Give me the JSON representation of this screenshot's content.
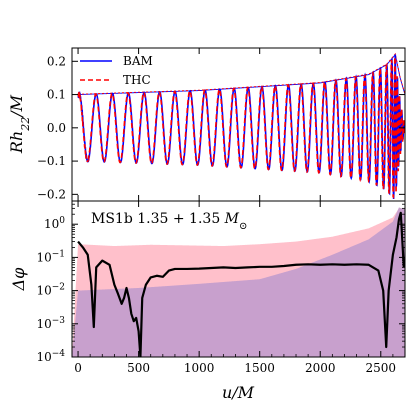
{
  "chart_data": [
    {
      "type": "line",
      "ylabel": "Rh22/M",
      "ylabel_parts": {
        "main": "Rh",
        "sub": "22",
        "tail": "/M"
      },
      "xlim": [
        -50,
        2700
      ],
      "ylim": [
        -0.22,
        0.24
      ],
      "y_ticks": [
        -0.2,
        -0.1,
        0.0,
        0.1,
        0.2
      ],
      "y_tick_labels": [
        "−0.2",
        "−0.1",
        "0.0",
        "0.1",
        "0.2"
      ],
      "legend_position": "top-left",
      "legend": [
        {
          "name": "BAM",
          "color": "#0000ff",
          "dash": "solid"
        },
        {
          "name": "THC",
          "color": "#ff0000",
          "dash": "dashed"
        }
      ],
      "signal": {
        "t_merger": 2620,
        "amplitude_points": [
          [
            0,
            0.1
          ],
          [
            1000,
            0.112
          ],
          [
            2000,
            0.135
          ],
          [
            2400,
            0.16
          ],
          [
            2550,
            0.19
          ],
          [
            2620,
            0.22
          ],
          [
            2660,
            0.15
          ],
          [
            2700,
            0.1
          ]
        ],
        "peak_times": [
          10,
          150,
          284,
          416,
          546,
          674,
          801,
          926,
          1049,
          1170,
          1289,
          1405,
          1519,
          1630,
          1738,
          1843,
          1943,
          2039,
          2130,
          2216,
          2296,
          2370,
          2437,
          2497,
          2550,
          2592,
          2620
        ],
        "noise_window": [
          0,
          120
        ]
      }
    },
    {
      "type": "line",
      "xlabel": "u/M",
      "ylabel": "Δφ",
      "yscale": "log",
      "xlim": [
        -50,
        2700
      ],
      "ylim": [
        0.0001,
        5
      ],
      "x_ticks": [
        0,
        500,
        1000,
        1500,
        2000,
        2500
      ],
      "x_tick_labels": [
        "0",
        "500",
        "1000",
        "1500",
        "2000",
        "2500"
      ],
      "y_ticks": [
        0.0001,
        0.001,
        0.01,
        0.1,
        1
      ],
      "y_tick_labels": [
        {
          "base": "10",
          "exp": "−4"
        },
        {
          "base": "10",
          "exp": "−3"
        },
        {
          "base": "10",
          "exp": "−2"
        },
        {
          "base": "10",
          "exp": "−1"
        },
        {
          "base": "10",
          "exp": "0"
        }
      ],
      "annotation": {
        "main": "MS1b 1.35 + 1.35 ",
        "mass": "M",
        "sun": "⊙"
      },
      "colors": {
        "pink_band": "#ffc0cb",
        "purple_band": "#c8a0cd",
        "line": "#000000"
      },
      "pink_upper": [
        [
          0,
          0.25
        ],
        [
          300,
          0.22
        ],
        [
          600,
          0.24
        ],
        [
          900,
          0.23
        ],
        [
          1200,
          0.22
        ],
        [
          1500,
          0.25
        ],
        [
          1800,
          0.3
        ],
        [
          2100,
          0.42
        ],
        [
          2400,
          0.75
        ],
        [
          2600,
          1.6
        ],
        [
          2650,
          3.0
        ],
        [
          2700,
          2.4
        ]
      ],
      "purple_upper": [
        [
          0,
          0.01
        ],
        [
          500,
          0.012
        ],
        [
          1000,
          0.016
        ],
        [
          1500,
          0.022
        ],
        [
          1800,
          0.045
        ],
        [
          2100,
          0.12
        ],
        [
          2400,
          0.35
        ],
        [
          2600,
          1.2
        ],
        [
          2650,
          3.2
        ],
        [
          2700,
          2.8
        ]
      ],
      "delta_phi": [
        [
          0,
          0.3
        ],
        [
          40,
          0.2
        ],
        [
          80,
          0.12
        ],
        [
          110,
          0.015
        ],
        [
          130,
          0.0008
        ],
        [
          150,
          0.05
        ],
        [
          200,
          0.08
        ],
        [
          260,
          0.06
        ],
        [
          300,
          0.015
        ],
        [
          330,
          0.008
        ],
        [
          360,
          0.004
        ],
        [
          380,
          0.006
        ],
        [
          400,
          0.012
        ],
        [
          420,
          0.006
        ],
        [
          440,
          0.002
        ],
        [
          460,
          0.0012
        ],
        [
          480,
          0.0015
        ],
        [
          500,
          0.0006
        ],
        [
          515,
          0.0001
        ],
        [
          530,
          0.006
        ],
        [
          560,
          0.015
        ],
        [
          600,
          0.025
        ],
        [
          650,
          0.028
        ],
        [
          700,
          0.026
        ],
        [
          750,
          0.04
        ],
        [
          800,
          0.045
        ],
        [
          900,
          0.045
        ],
        [
          1000,
          0.046
        ],
        [
          1100,
          0.048
        ],
        [
          1200,
          0.05
        ],
        [
          1300,
          0.048
        ],
        [
          1400,
          0.05
        ],
        [
          1500,
          0.052
        ],
        [
          1600,
          0.052
        ],
        [
          1700,
          0.055
        ],
        [
          1800,
          0.06
        ],
        [
          1900,
          0.062
        ],
        [
          2000,
          0.06
        ],
        [
          2100,
          0.062
        ],
        [
          2200,
          0.06
        ],
        [
          2300,
          0.062
        ],
        [
          2400,
          0.06
        ],
        [
          2480,
          0.04
        ],
        [
          2520,
          0.01
        ],
        [
          2545,
          0.0002
        ],
        [
          2565,
          0.01
        ],
        [
          2600,
          0.12
        ],
        [
          2630,
          0.4
        ],
        [
          2650,
          1.4
        ],
        [
          2665,
          2.2
        ],
        [
          2675,
          0.5
        ],
        [
          2690,
          0.05
        ]
      ]
    }
  ]
}
